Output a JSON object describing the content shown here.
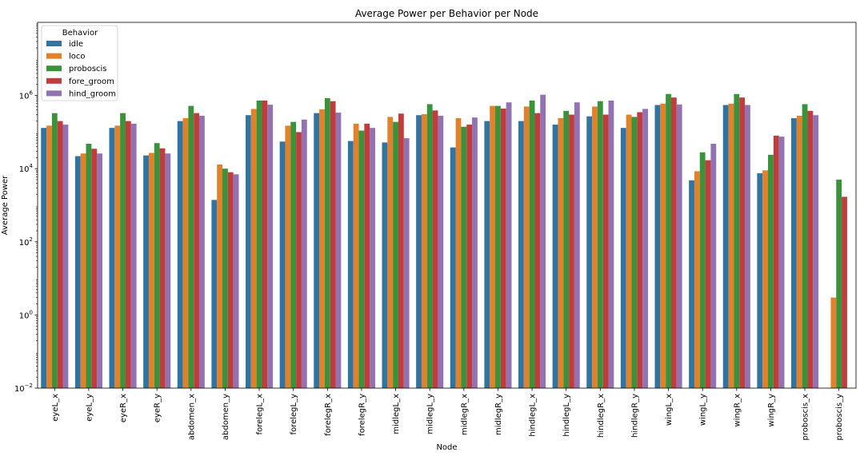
{
  "chart_data": {
    "type": "bar",
    "title": "Average Power per Behavior per Node",
    "xlabel": "Node",
    "ylabel": "Average Power",
    "yscale": "log",
    "ylim": [
      0.01,
      100000000
    ],
    "yticks": [
      {
        "value": 0.01,
        "base": "10",
        "exp": "−2"
      },
      {
        "value": 1,
        "base": "10",
        "exp": "0"
      },
      {
        "value": 100,
        "base": "10",
        "exp": "2"
      },
      {
        "value": 10000,
        "base": "10",
        "exp": "4"
      },
      {
        "value": 1000000,
        "base": "10",
        "exp": "6"
      }
    ],
    "legend": {
      "title": "Behavior",
      "position": "top-left"
    },
    "colors": [
      "#3274a1",
      "#e1812c",
      "#3a923a",
      "#c03d3e",
      "#9372b2"
    ],
    "categories": [
      "eyeL_x",
      "eyeL_y",
      "eyeR_x",
      "eyeR_y",
      "abdomen_x",
      "abdomen_y",
      "forelegL_x",
      "forelegL_y",
      "forelegR_x",
      "forelegR_y",
      "midlegL_x",
      "midlegL_y",
      "midlegR_x",
      "midlegR_y",
      "hindlegL_x",
      "hindlegL_y",
      "hindlegR_x",
      "hindlegR_y",
      "wingL_x",
      "wingL_y",
      "wingR_x",
      "wingR_y",
      "proboscis_x",
      "proboscis_y"
    ],
    "series": [
      {
        "name": "idle",
        "values": [
          130000,
          22000,
          130000,
          23000,
          200000,
          1400,
          290000,
          55000,
          330000,
          57000,
          52000,
          290000,
          38000,
          200000,
          200000,
          160000,
          270000,
          130000,
          550000,
          4800,
          550000,
          7500,
          240000,
          null
        ]
      },
      {
        "name": "loco",
        "values": [
          150000,
          26000,
          150000,
          27000,
          240000,
          13000,
          430000,
          150000,
          420000,
          170000,
          260000,
          310000,
          240000,
          520000,
          500000,
          240000,
          500000,
          300000,
          600000,
          8500,
          600000,
          9000,
          280000,
          3
        ]
      },
      {
        "name": "proboscis",
        "values": [
          330000,
          48000,
          330000,
          50000,
          520000,
          10000,
          730000,
          190000,
          850000,
          110000,
          190000,
          580000,
          140000,
          520000,
          730000,
          380000,
          700000,
          260000,
          1100000,
          28000,
          1100000,
          24000,
          580000,
          5000
        ]
      },
      {
        "name": "fore_groom",
        "values": [
          200000,
          35000,
          200000,
          36000,
          330000,
          8000,
          730000,
          100000,
          700000,
          170000,
          320000,
          390000,
          160000,
          440000,
          330000,
          300000,
          300000,
          350000,
          880000,
          17000,
          880000,
          80000,
          380000,
          1700
        ]
      },
      {
        "name": "hind_groom",
        "values": [
          160000,
          26000,
          170000,
          26000,
          280000,
          7000,
          560000,
          220000,
          340000,
          130000,
          68000,
          280000,
          250000,
          650000,
          1050000,
          650000,
          730000,
          430000,
          570000,
          48000,
          550000,
          75000,
          290000,
          null
        ]
      }
    ]
  }
}
